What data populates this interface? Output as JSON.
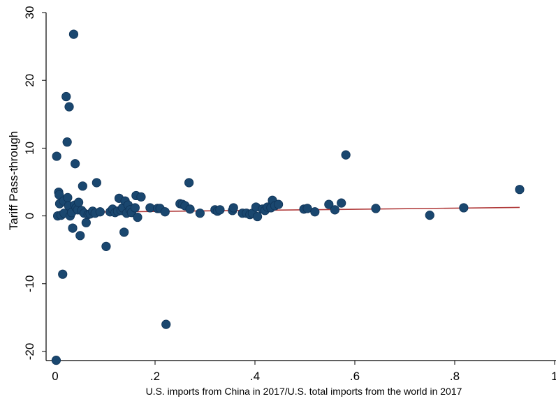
{
  "chart_data": {
    "type": "scatter",
    "xlabel": "U.S. imports from China in 2017/U.S. total imports from the world in 2017",
    "ylabel": "Tariff Pass-through",
    "xlim": [
      0,
      1
    ],
    "ylim": [
      -22,
      30
    ],
    "x_ticks": [
      {
        "value": 0,
        "label": "0"
      },
      {
        "value": 0.2,
        "label": ".2"
      },
      {
        "value": 0.4,
        "label": ".4"
      },
      {
        "value": 0.6,
        "label": ".6"
      },
      {
        "value": 0.8,
        "label": ".8"
      },
      {
        "value": 1,
        "label": "1"
      }
    ],
    "y_ticks": [
      {
        "value": -20,
        "label": "-20"
      },
      {
        "value": -10,
        "label": "-10"
      },
      {
        "value": 0,
        "label": "0"
      },
      {
        "value": 10,
        "label": "10"
      },
      {
        "value": 20,
        "label": "20"
      },
      {
        "value": 30,
        "label": "30"
      }
    ],
    "grid": false,
    "marker_color": "#1a476f",
    "fit_color": "#b03a3a",
    "series": [
      {
        "points": [
          [
            0.002,
            -21.3
          ],
          [
            0.003,
            8.8
          ],
          [
            0.005,
            0.0
          ],
          [
            0.007,
            3.5
          ],
          [
            0.008,
            3.1
          ],
          [
            0.009,
            1.8
          ],
          [
            0.012,
            0.1
          ],
          [
            0.015,
            -8.6
          ],
          [
            0.017,
            2.2
          ],
          [
            0.018,
            0.4
          ],
          [
            0.022,
            17.6
          ],
          [
            0.024,
            10.9
          ],
          [
            0.025,
            2.7
          ],
          [
            0.027,
            1.5
          ],
          [
            0.028,
            16.1
          ],
          [
            0.03,
            0.0
          ],
          [
            0.033,
            0.5
          ],
          [
            0.035,
            -1.8
          ],
          [
            0.037,
            26.8
          ],
          [
            0.039,
            1.6
          ],
          [
            0.04,
            7.7
          ],
          [
            0.042,
            1.2
          ],
          [
            0.045,
            0.9
          ],
          [
            0.047,
            2.0
          ],
          [
            0.05,
            -2.9
          ],
          [
            0.053,
            0.8
          ],
          [
            0.055,
            4.4
          ],
          [
            0.058,
            0.4
          ],
          [
            0.062,
            -1.0
          ],
          [
            0.066,
            0.2
          ],
          [
            0.07,
            0.3
          ],
          [
            0.075,
            0.7
          ],
          [
            0.08,
            0.4
          ],
          [
            0.083,
            4.9
          ],
          [
            0.09,
            0.6
          ],
          [
            0.102,
            -4.5
          ],
          [
            0.11,
            0.6
          ],
          [
            0.115,
            1.0
          ],
          [
            0.12,
            0.5
          ],
          [
            0.125,
            0.7
          ],
          [
            0.128,
            2.6
          ],
          [
            0.132,
            0.8
          ],
          [
            0.135,
            1.2
          ],
          [
            0.138,
            -2.4
          ],
          [
            0.14,
            2.2
          ],
          [
            0.143,
            0.4
          ],
          [
            0.146,
            1.6
          ],
          [
            0.15,
            0.9
          ],
          [
            0.153,
            0.5
          ],
          [
            0.16,
            1.2
          ],
          [
            0.162,
            3.0
          ],
          [
            0.165,
            -0.2
          ],
          [
            0.172,
            2.8
          ],
          [
            0.19,
            1.2
          ],
          [
            0.205,
            1.1
          ],
          [
            0.21,
            1.1
          ],
          [
            0.22,
            0.6
          ],
          [
            0.222,
            -16.0
          ],
          [
            0.25,
            1.8
          ],
          [
            0.255,
            1.7
          ],
          [
            0.26,
            1.5
          ],
          [
            0.268,
            4.9
          ],
          [
            0.27,
            1.0
          ],
          [
            0.29,
            0.4
          ],
          [
            0.32,
            0.9
          ],
          [
            0.325,
            0.7
          ],
          [
            0.33,
            0.9
          ],
          [
            0.355,
            0.8
          ],
          [
            0.357,
            1.2
          ],
          [
            0.375,
            0.4
          ],
          [
            0.383,
            0.4
          ],
          [
            0.39,
            0.2
          ],
          [
            0.395,
            0.4
          ],
          [
            0.402,
            1.3
          ],
          [
            0.405,
            -0.1
          ],
          [
            0.415,
            1.0
          ],
          [
            0.42,
            0.8
          ],
          [
            0.425,
            1.3
          ],
          [
            0.432,
            1.2
          ],
          [
            0.435,
            2.3
          ],
          [
            0.44,
            1.5
          ],
          [
            0.447,
            1.7
          ],
          [
            0.498,
            1.0
          ],
          [
            0.505,
            1.1
          ],
          [
            0.52,
            0.6
          ],
          [
            0.548,
            1.7
          ],
          [
            0.56,
            0.9
          ],
          [
            0.573,
            1.9
          ],
          [
            0.582,
            9.0
          ],
          [
            0.642,
            1.1
          ],
          [
            0.75,
            0.1
          ],
          [
            0.818,
            1.2
          ],
          [
            0.93,
            3.9
          ]
        ]
      }
    ],
    "fit_line": {
      "x": [
        0.0,
        0.93
      ],
      "y": [
        0.5,
        1.25
      ]
    }
  }
}
